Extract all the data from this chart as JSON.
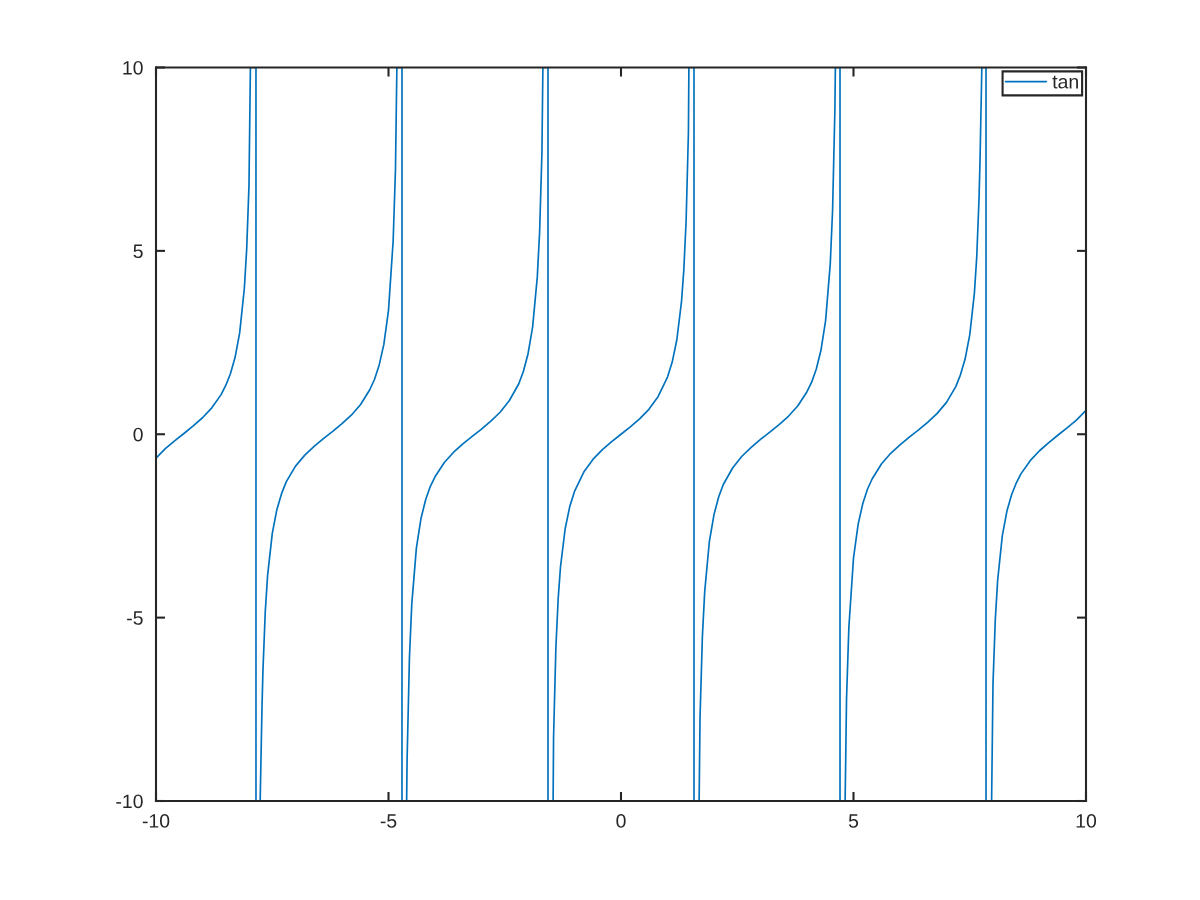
{
  "chart_data": {
    "type": "line",
    "series": [
      {
        "name": "tan",
        "color": "#0072bd",
        "x": [
          -10,
          -9.8,
          -9.6,
          -9.4,
          -9.2,
          -9.0,
          -8.8,
          -8.6,
          -8.5,
          -8.4,
          -8.3,
          -8.2,
          -8.1,
          -8.05,
          -8.0,
          -7.97,
          -7.85,
          -7.85,
          -7.76,
          -7.72,
          -7.7,
          -7.65,
          -7.6,
          -7.5,
          -7.4,
          -7.3,
          -7.2,
          -7.0,
          -6.8,
          -6.6,
          -6.4,
          -6.2,
          -6.0,
          -5.8,
          -5.6,
          -5.4,
          -5.3,
          -5.2,
          -5.1,
          -5.0,
          -4.9,
          -4.85,
          -4.82,
          -4.71,
          -4.71,
          -4.61,
          -4.6,
          -4.55,
          -4.5,
          -4.4,
          -4.3,
          -4.2,
          -4.1,
          -4.0,
          -3.8,
          -3.6,
          -3.4,
          -3.2,
          -3.0,
          -2.8,
          -2.6,
          -2.4,
          -2.2,
          -2.1,
          -2.0,
          -1.9,
          -1.8,
          -1.75,
          -1.7,
          -1.68,
          -1.57,
          -1.57,
          -1.46,
          -1.45,
          -1.4,
          -1.35,
          -1.3,
          -1.2,
          -1.1,
          -1.0,
          -0.8,
          -0.6,
          -0.4,
          -0.2,
          0,
          0.2,
          0.4,
          0.6,
          0.8,
          1.0,
          1.1,
          1.2,
          1.3,
          1.35,
          1.4,
          1.45,
          1.46,
          1.57,
          1.57,
          1.68,
          1.7,
          1.75,
          1.8,
          1.9,
          2.0,
          2.1,
          2.2,
          2.4,
          2.6,
          2.8,
          3.0,
          3.2,
          3.4,
          3.6,
          3.8,
          4.0,
          4.1,
          4.2,
          4.3,
          4.4,
          4.5,
          4.55,
          4.6,
          4.61,
          4.71,
          4.71,
          4.82,
          4.85,
          4.9,
          5.0,
          5.1,
          5.2,
          5.3,
          5.4,
          5.6,
          5.8,
          6.0,
          6.2,
          6.4,
          6.6,
          6.8,
          7.0,
          7.2,
          7.3,
          7.4,
          7.5,
          7.6,
          7.65,
          7.7,
          7.72,
          7.76,
          7.85,
          7.85,
          7.97,
          8.0,
          8.05,
          8.1,
          8.2,
          8.3,
          8.4,
          8.5,
          8.6,
          8.8,
          9.0,
          9.2,
          9.4,
          9.6,
          9.8,
          10
        ],
        "values": [
          -0.65,
          -0.39,
          -0.18,
          0.02,
          0.23,
          0.45,
          0.72,
          1.08,
          1.33,
          1.65,
          2.09,
          2.77,
          3.98,
          5.04,
          6.8,
          10,
          10,
          -10,
          -10,
          -7.42,
          -6.44,
          -4.83,
          -3.85,
          -2.71,
          -2.05,
          -1.62,
          -1.3,
          -0.87,
          -0.57,
          -0.33,
          -0.12,
          0.08,
          0.29,
          0.52,
          0.81,
          1.22,
          1.5,
          1.89,
          2.45,
          3.38,
          5.27,
          7.22,
          10,
          10,
          -10,
          -10,
          -8.86,
          -6.1,
          -4.64,
          -3.1,
          -2.29,
          -1.78,
          -1.42,
          -1.16,
          -0.77,
          -0.49,
          -0.26,
          -0.06,
          0.14,
          0.36,
          0.6,
          0.92,
          1.37,
          1.71,
          2.19,
          2.93,
          4.29,
          5.52,
          7.7,
          10,
          10,
          -10,
          -10,
          -8.24,
          -5.8,
          -4.46,
          -3.6,
          -2.57,
          -1.96,
          -1.56,
          -1.03,
          -0.68,
          -0.42,
          -0.2,
          0,
          0.2,
          0.42,
          0.68,
          1.03,
          1.56,
          1.96,
          2.57,
          3.6,
          4.46,
          5.8,
          8.24,
          10,
          10,
          -10,
          -10,
          -7.7,
          -5.52,
          -4.29,
          -2.93,
          -2.19,
          -1.71,
          -1.37,
          -0.92,
          -0.6,
          -0.36,
          -0.14,
          0.06,
          0.26,
          0.49,
          0.77,
          1.16,
          1.42,
          1.78,
          2.29,
          3.1,
          4.64,
          6.1,
          8.86,
          10,
          10,
          -10,
          -10,
          -7.22,
          -5.27,
          -3.38,
          -2.45,
          -1.89,
          -1.5,
          -1.22,
          -0.81,
          -0.52,
          -0.29,
          -0.08,
          0.12,
          0.33,
          0.57,
          0.87,
          1.3,
          1.62,
          2.05,
          2.71,
          3.85,
          4.83,
          6.44,
          7.42,
          10,
          10,
          -10,
          -10,
          -6.8,
          -5.04,
          -3.98,
          -2.77,
          -2.09,
          -1.65,
          -1.33,
          -1.08,
          -0.72,
          -0.45,
          -0.23,
          -0.02,
          0.18,
          0.39,
          0.65
        ]
      }
    ],
    "xlim": [
      -10,
      10
    ],
    "ylim": [
      -10,
      10
    ],
    "xticks": [
      -10,
      -5,
      0,
      5,
      10
    ],
    "yticks": [
      -10,
      -5,
      0,
      5,
      10
    ],
    "legend": "top right"
  }
}
